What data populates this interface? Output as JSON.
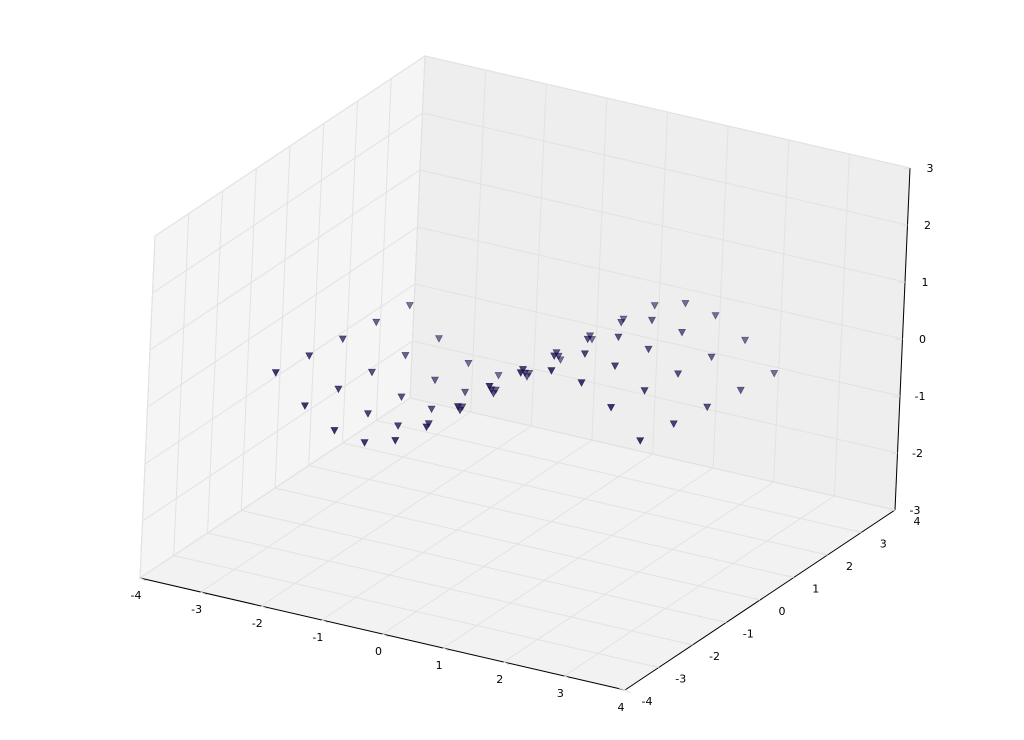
{
  "chart_data": {
    "type": "scatter3d",
    "x": [
      -3,
      -2.5,
      -2,
      -1.5,
      -1,
      -0.5,
      0,
      0.5,
      1,
      1.5,
      2,
      2.5,
      3,
      -3,
      -2.5,
      -2,
      -1.5,
      -1,
      -0.5,
      0,
      0.5,
      1,
      1.5,
      2,
      2.5,
      3,
      -3,
      -2.5,
      -2,
      -1.5,
      -1,
      -0.5,
      0,
      0.5,
      1,
      1.5,
      2,
      2.5,
      3,
      -3,
      -2.5,
      -2,
      -1.5,
      -1,
      -0.5,
      0,
      0.5,
      1,
      1.5,
      2,
      2.5,
      3,
      -3,
      -2.5,
      -2,
      -1.5,
      -1,
      -0.5,
      0,
      0.5,
      1,
      1.5,
      2,
      2.5,
      3
    ],
    "y": [
      -2,
      -2,
      -2,
      -2,
      -2,
      -2,
      -2,
      -2,
      -2,
      -2,
      -2,
      -2,
      -2,
      -1,
      -1,
      -1,
      -1,
      -1,
      -1,
      -1,
      -1,
      -1,
      -1,
      -1,
      -1,
      -1,
      0,
      0,
      0,
      0,
      0,
      0,
      0,
      0,
      0,
      0,
      0,
      0,
      0,
      1,
      1,
      1,
      1,
      1,
      1,
      1,
      1,
      1,
      1,
      1,
      1,
      1,
      2,
      2,
      2,
      2,
      2,
      2,
      2,
      2,
      2,
      2,
      2,
      2,
      2
    ],
    "z": [
      0.06,
      -0.4,
      -0.71,
      -0.8,
      -0.64,
      -0.28,
      0.2,
      0.68,
      1.04,
      1.2,
      1.11,
      0.8,
      0.34,
      -0.04,
      -0.5,
      -0.81,
      -0.9,
      -0.74,
      -0.38,
      0.1,
      0.58,
      0.94,
      1.1,
      1.01,
      0.7,
      0.24,
      -0.14,
      -0.6,
      -0.91,
      -1.0,
      -0.84,
      -0.48,
      0,
      0.48,
      0.84,
      1.0,
      0.91,
      0.6,
      0.14,
      -0.24,
      -0.7,
      -1.01,
      -1.1,
      -0.94,
      -0.58,
      -0.1,
      0.38,
      0.74,
      0.9,
      0.81,
      0.5,
      0.04,
      -0.34,
      -0.8,
      -1.11,
      -1.2,
      -1.04,
      -0.68,
      -0.2,
      0.28,
      0.64,
      0.8,
      0.71,
      0.4,
      -0.06
    ],
    "color": "#1c1650",
    "marker": "v",
    "xlim": [
      -4,
      4
    ],
    "ylim": [
      -4,
      4
    ],
    "zlim": [
      -3,
      3
    ],
    "xticks": [
      -4,
      -3,
      -2,
      -1,
      0,
      1,
      2,
      3,
      4
    ],
    "yticks": [
      -4,
      -3,
      -2,
      -1,
      0,
      1,
      2,
      3,
      4
    ],
    "zticks": [
      -3,
      -2,
      -1,
      0,
      1,
      2,
      3
    ],
    "grid": true
  }
}
